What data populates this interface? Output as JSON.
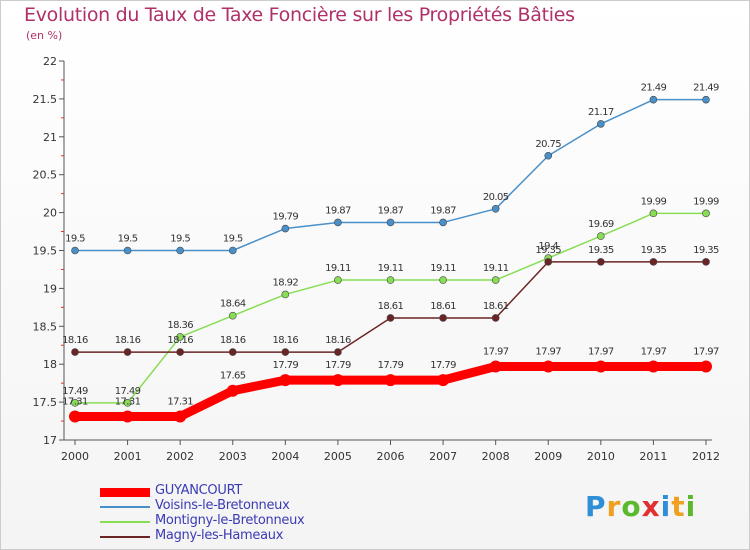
{
  "chart_data": {
    "type": "line",
    "title": "Evolution du Taux de Taxe Foncière sur les Propriétés Bâties",
    "ylabel": "(en %)",
    "xlabel": "",
    "x": [
      "2000",
      "2001",
      "2002",
      "2003",
      "2004",
      "2005",
      "2006",
      "2007",
      "2008",
      "2009",
      "2010",
      "2011",
      "2012"
    ],
    "ylim": [
      17,
      22
    ],
    "yticks": [
      "17",
      "17.5",
      "18",
      "18.5",
      "19",
      "19.5",
      "20",
      "20.5",
      "21",
      "21.5",
      "22"
    ],
    "series": [
      {
        "name": "GUYANCOURT",
        "color": "#ff0000",
        "values": [
          17.31,
          17.31,
          17.31,
          17.65,
          17.79,
          17.79,
          17.79,
          17.79,
          17.97,
          17.97,
          17.97,
          17.97,
          17.97
        ],
        "labels": [
          "17.31",
          "17.31",
          "17.31",
          "17.65",
          "17.79",
          "17.79",
          "17.79",
          "17.79",
          "17.97",
          "17.97",
          "17.97",
          "17.97",
          "17.97"
        ]
      },
      {
        "name": "Voisins-le-Bretonneux",
        "color": "#4a90c8",
        "values": [
          19.5,
          19.5,
          19.5,
          19.5,
          19.79,
          19.87,
          19.87,
          19.87,
          20.05,
          20.75,
          21.17,
          21.49,
          21.49
        ],
        "labels": [
          "19.5",
          "19.5",
          "19.5",
          "19.5",
          "19.79",
          "19.87",
          "19.87",
          "19.87",
          "20.05",
          "20.75",
          "21.17",
          "21.49",
          "21.49"
        ]
      },
      {
        "name": "Montigny-le-Bretonneux",
        "color": "#88dd55",
        "values": [
          17.49,
          17.49,
          18.36,
          18.64,
          18.92,
          19.11,
          19.11,
          19.11,
          19.11,
          19.4,
          19.69,
          19.99,
          19.99
        ],
        "labels": [
          "17.49",
          "17.49",
          "18.36",
          "18.64",
          "18.92",
          "19.11",
          "19.11",
          "19.11",
          "19.11",
          "19.4",
          "19.69",
          "19.99",
          "19.99"
        ]
      },
      {
        "name": "Magny-les-Hameaux",
        "color": "#6b2424",
        "values": [
          18.16,
          18.16,
          18.16,
          18.16,
          18.16,
          18.16,
          18.61,
          18.61,
          18.61,
          19.35,
          19.35,
          19.35,
          19.35
        ],
        "labels": [
          "18.16",
          "18.16",
          "18.16",
          "18.16",
          "18.16",
          "18.16",
          "18.61",
          "18.61",
          "18.61",
          "19.35",
          "19.35",
          "19.35",
          "19.35"
        ]
      }
    ],
    "legend": "bottom-left",
    "grid": false
  },
  "logo": {
    "letters": [
      "P",
      "r",
      "o",
      "x",
      "i",
      "t",
      "i"
    ],
    "colors": [
      "#2f8fd6",
      "#f0a020",
      "#5cb82c",
      "#e03030",
      "#2f8fd6",
      "#f0a020",
      "#5cb82c"
    ]
  }
}
